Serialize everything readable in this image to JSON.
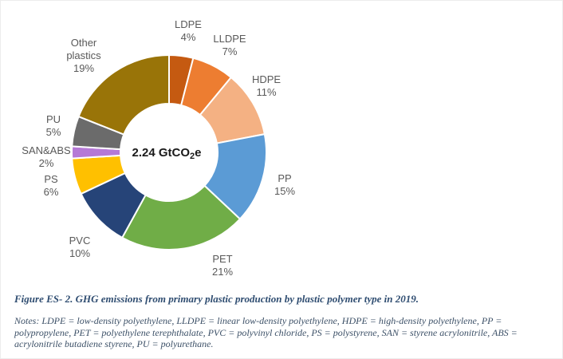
{
  "chart_data": {
    "type": "pie",
    "subtype": "donut",
    "center_label": {
      "text": "2.24 GtCO2e",
      "prefix": "2.24 GtCO",
      "sub": "2",
      "suffix": "e"
    },
    "direction": "clockwise",
    "start_angle_deg": 0,
    "legend_position": "labels-around-donut",
    "label_color": "#595959",
    "slice_divider_color": "#ffffff",
    "slices": [
      {
        "label": "LDPE",
        "pct_label": "4%",
        "value": 4,
        "color": "#C55A11"
      },
      {
        "label": "LLDPE",
        "pct_label": "7%",
        "value": 7,
        "color": "#ED7D31"
      },
      {
        "label": "HDPE",
        "pct_label": "11%",
        "value": 11,
        "color": "#F4B183"
      },
      {
        "label": "PP",
        "pct_label": "15%",
        "value": 15,
        "color": "#5B9BD5"
      },
      {
        "label": "PET",
        "pct_label": "21%",
        "value": 21,
        "color": "#70AD47"
      },
      {
        "label": "PVC",
        "pct_label": "10%",
        "value": 10,
        "color": "#264478"
      },
      {
        "label": "PS",
        "pct_label": "6%",
        "value": 6,
        "color": "#FFC000"
      },
      {
        "label": "SAN&ABS",
        "pct_label": "2%",
        "value": 2,
        "color": "#B579D6"
      },
      {
        "label": "PU",
        "pct_label": "5%",
        "value": 5,
        "color": "#6B6B6B"
      },
      {
        "label": "Other plastics",
        "pct_label": "19%",
        "value": 19,
        "color": "#997408"
      }
    ]
  },
  "caption": "Figure ES- 2. GHG emissions from primary plastic production by plastic polymer type in 2019.",
  "caption_color": "#2F4D71",
  "notes": "Notes: LDPE = low-density polyethylene, LLDPE = linear low-density polyethylene, HDPE = high-density polyethylene, PP = polypropylene, PET = polyethylene terephthalate, PVC = polyvinyl chloride, PS = polystyrene, SAN = styrene acrylonitrile, ABS = acrylonitrile butadiene styrene, PU = polyurethane.",
  "notes_color": "#3C5067"
}
